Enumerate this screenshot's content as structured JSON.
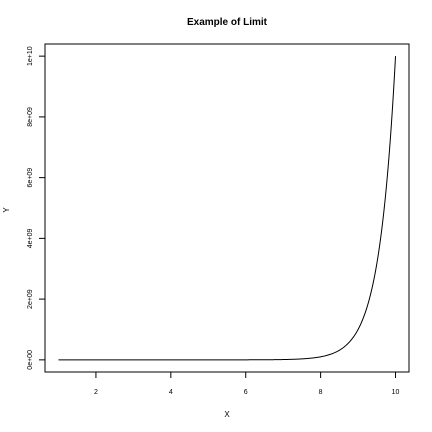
{
  "chart_data": {
    "type": "line",
    "title": "Example of Limit",
    "xlabel": "X",
    "ylabel": "Y",
    "function": "10^x",
    "x_range": [
      1,
      10
    ],
    "xlim": [
      0.64,
      10.36
    ],
    "ylim": [
      -400000000,
      10400000000
    ],
    "x_ticks": [
      2,
      4,
      6,
      8,
      10
    ],
    "x_tick_labels": [
      "2",
      "4",
      "6",
      "8",
      "10"
    ],
    "y_ticks": [
      0,
      2000000000,
      4000000000,
      6000000000,
      8000000000,
      10000000000
    ],
    "y_tick_labels": [
      "0e+00",
      "2e+09",
      "4e+09",
      "6e+09",
      "8e+09",
      "1e+10"
    ],
    "grid": false,
    "legend": "none",
    "line_color": "#000000"
  }
}
